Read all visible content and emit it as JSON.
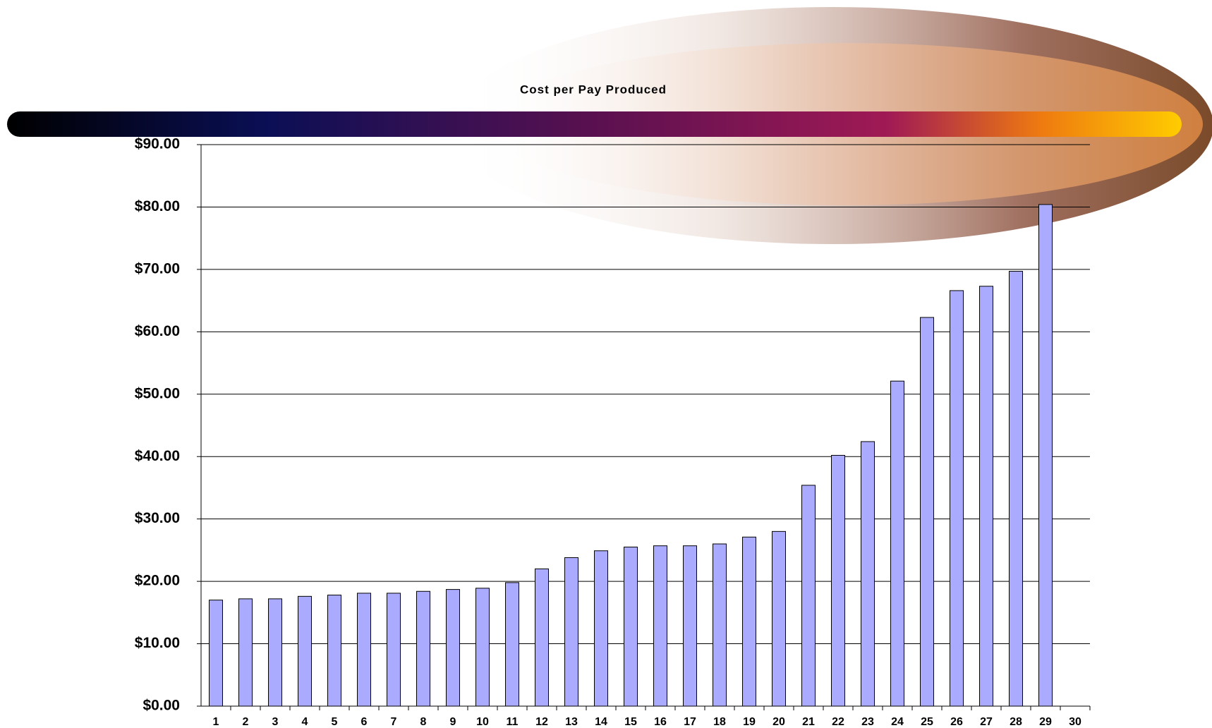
{
  "chart_data": {
    "type": "bar",
    "title": "Cost per Pay Produced",
    "categories": [
      "1",
      "2",
      "3",
      "4",
      "5",
      "6",
      "7",
      "8",
      "9",
      "10",
      "11",
      "12",
      "13",
      "14",
      "15",
      "16",
      "17",
      "18",
      "19",
      "20",
      "21",
      "22",
      "23",
      "24",
      "25",
      "26",
      "27",
      "28",
      "29",
      "30"
    ],
    "values": [
      17.0,
      17.2,
      17.2,
      17.6,
      17.8,
      18.1,
      18.1,
      18.4,
      18.7,
      18.9,
      19.8,
      22.0,
      23.8,
      24.9,
      25.5,
      25.7,
      25.7,
      26.0,
      27.1,
      28.0,
      35.4,
      40.2,
      42.4,
      52.1,
      62.3,
      66.6,
      67.3,
      69.7,
      80.4,
      null
    ],
    "color": "#aaaaff",
    "ylim": [
      0,
      90
    ],
    "yticks": [
      {
        "value": 0,
        "label": "$0.00"
      },
      {
        "value": 10,
        "label": "$10.00"
      },
      {
        "value": 20,
        "label": "$20.00"
      },
      {
        "value": 30,
        "label": "$30.00"
      },
      {
        "value": 40,
        "label": "$40.00"
      },
      {
        "value": 50,
        "label": "$50.00"
      },
      {
        "value": 60,
        "label": "$60.00"
      },
      {
        "value": 70,
        "label": "$70.00"
      },
      {
        "value": 80,
        "label": "$80.00"
      },
      {
        "value": 90,
        "label": "$90.00"
      }
    ],
    "grid": true
  }
}
